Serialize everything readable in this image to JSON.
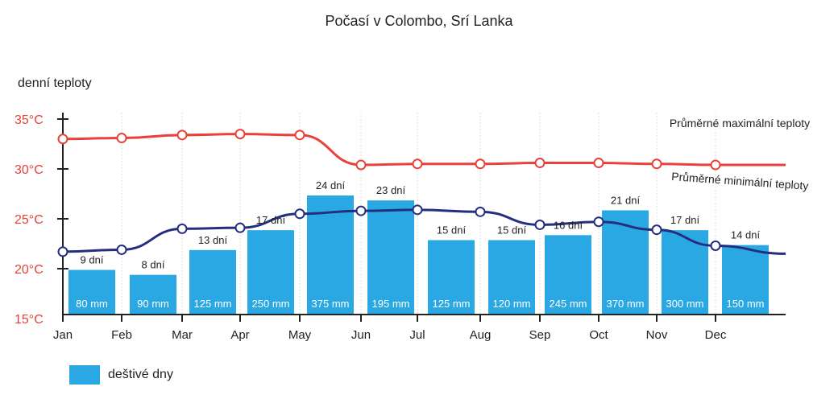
{
  "chart_data": {
    "type": "bar",
    "title": "Počasí v Colombo, Srí Lanka",
    "ylabel": "denní teploty",
    "ylim": [
      15,
      35
    ],
    "y_ticks": [
      "15°C",
      "20°C",
      "25°C",
      "30°C",
      "35°C"
    ],
    "y_tick_values": [
      15,
      20,
      25,
      30,
      35
    ],
    "categories": [
      "Jan",
      "Feb",
      "Mar",
      "Apr",
      "May",
      "Jun",
      "Jul",
      "Aug",
      "Sep",
      "Oct",
      "Nov",
      "Dec"
    ],
    "rainy_days": {
      "name": "deštivé dny",
      "labels": [
        "9 dní",
        "8 dní",
        "13 dní",
        "17 dní",
        "24 dní",
        "23 dní",
        "15 dní",
        "15 dní",
        "16 dní",
        "21 dní",
        "17 dní",
        "14 dní"
      ],
      "values": [
        9,
        8,
        13,
        17,
        24,
        23,
        15,
        15,
        16,
        21,
        17,
        14
      ],
      "rainfall": [
        "80 mm",
        "90 mm",
        "125 mm",
        "250 mm",
        "375 mm",
        "195 mm",
        "125 mm",
        "120 mm",
        "245 mm",
        "370 mm",
        "300 mm",
        "150 mm"
      ]
    },
    "series": [
      {
        "name": "Průměrné maximální teploty",
        "values": [
          33,
          33.1,
          33.4,
          33.5,
          33.4,
          30.4,
          30.5,
          30.5,
          30.6,
          30.6,
          30.5,
          30.4
        ]
      },
      {
        "name": "Průměrné minimální teploty",
        "values": [
          21.7,
          21.9,
          24.0,
          24.1,
          25.5,
          25.8,
          25.9,
          25.7,
          24.4,
          24.7,
          23.9,
          22.3
        ]
      }
    ],
    "colors": {
      "max": "#e8413a",
      "min": "#232f7e",
      "bars": "#2aa8e4",
      "axis_ticks": "#e8413a"
    },
    "grid": "vertical-dashed",
    "legend": "bottom-left"
  }
}
